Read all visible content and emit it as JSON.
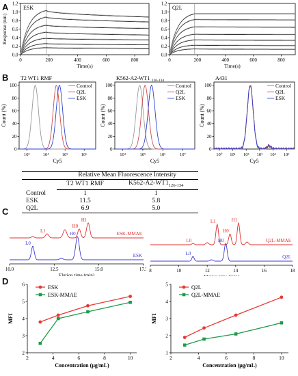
{
  "panels": {
    "A": "A",
    "B": "B",
    "C": "C",
    "D": "D"
  },
  "chart_data": [
    {
      "id": "A-ESK",
      "type": "line",
      "annotation": "ESK",
      "xlabel": "Time(s)",
      "ylabel": "Response (nm)",
      "xlim": [
        0,
        900
      ],
      "ylim": [
        0,
        1.2
      ],
      "xticks": [
        0,
        200,
        400,
        600,
        800
      ],
      "yticks": [
        0.0,
        0.2,
        0.4,
        0.6,
        0.8,
        1.0,
        1.2
      ],
      "vline": 180,
      "series": [
        {
          "plateau": 1.08,
          "end": 0.92
        },
        {
          "plateau": 0.92,
          "end": 0.8
        },
        {
          "plateau": 0.72,
          "end": 0.64
        },
        {
          "plateau": 0.55,
          "end": 0.48
        },
        {
          "plateau": 0.4,
          "end": 0.36
        },
        {
          "plateau": 0.27,
          "end": 0.24
        },
        {
          "plateau": 0.17,
          "end": 0.15
        }
      ]
    },
    {
      "id": "A-Q2L",
      "type": "line",
      "annotation": "Q2L",
      "xlabel": "Time(s)",
      "ylabel": "",
      "xlim": [
        0,
        900
      ],
      "ylim": [
        0,
        1.2
      ],
      "xticks": [
        0,
        200,
        400,
        600,
        800
      ],
      "yticks": [
        0.0,
        0.2,
        0.4,
        0.6,
        0.8,
        1.0,
        1.2
      ],
      "vline": 180,
      "series": [
        {
          "plateau": 1.0,
          "end": 1.0
        },
        {
          "plateau": 0.86,
          "end": 0.85
        },
        {
          "plateau": 0.68,
          "end": 0.67
        },
        {
          "plateau": 0.5,
          "end": 0.49
        },
        {
          "plateau": 0.36,
          "end": 0.35
        },
        {
          "plateau": 0.23,
          "end": 0.22
        },
        {
          "plateau": 0.14,
          "end": 0.13
        }
      ]
    },
    {
      "id": "B-T2",
      "type": "line",
      "title": "T2 WT1 RMF",
      "xlabel": "Cy5",
      "ylabel": "Count (%)",
      "xtick_labels": [
        "10³",
        "10⁴",
        "10⁵",
        "10⁶"
      ],
      "yticks": [
        0,
        20,
        40,
        60,
        80,
        100
      ],
      "legend": [
        "Control",
        "Q2L",
        "ESK"
      ],
      "colors": [
        "#999999",
        "#d04a4a",
        "#2b3fd0"
      ],
      "peaks_log10": [
        3.9,
        4.95,
        5.1
      ]
    },
    {
      "id": "B-K562",
      "type": "line",
      "title": "K562-A2-WT1",
      "title_sub": "126-134",
      "xlabel": "Cy5",
      "ylabel": "Count (%)",
      "xtick_labels": [
        "10⁴",
        "10⁵",
        "10⁶",
        "10⁷"
      ],
      "yticks": [
        0,
        20,
        40,
        60,
        80,
        100
      ],
      "legend": [
        "Control",
        "Q2L",
        "ESK"
      ],
      "colors": [
        "#999999",
        "#d04a4a",
        "#2b3fd0"
      ],
      "peaks_log10": [
        5.35,
        5.6,
        5.9
      ]
    },
    {
      "id": "B-A431",
      "type": "line",
      "title": "A431",
      "xlabel": "Cy5",
      "ylabel": "Count (%)",
      "xtick_labels": [
        "10⁰",
        "10¹",
        "10²",
        "10³",
        "10⁴",
        "10⁵"
      ],
      "extra_tick": "-10⁰ 10⁰",
      "yticks": [
        0,
        20,
        40,
        60,
        80,
        100
      ],
      "legend": [
        "Control",
        "Q2L",
        "ESK"
      ],
      "colors": [
        "#999999",
        "#d04a4a",
        "#2b3fd0"
      ],
      "peaks_log10": [
        2.7,
        2.7,
        2.7
      ]
    },
    {
      "id": "B-table",
      "type": "table",
      "title": "Relative Mean Fluorescence Intensity",
      "columns": [
        "T2 WT1 RMF",
        "K562-A2-WT1"
      ],
      "column_sub": "126-134",
      "rows": [
        {
          "label": "Control",
          "values": [
            "1",
            "1"
          ]
        },
        {
          "label": "ESK",
          "values": [
            "11.5",
            "5.8"
          ]
        },
        {
          "label": "Q2L",
          "values": [
            "6.9",
            "5.0"
          ]
        }
      ]
    },
    {
      "id": "C-left",
      "type": "line",
      "xlabel": "Elution time (min)",
      "xlim": [
        10,
        17.5
      ],
      "xticks": [
        10.0,
        12.5,
        15.0,
        17.5
      ],
      "traces": [
        {
          "name": "ESK-MMAE",
          "color": "#e03030",
          "peak_labels": [
            {
              "text": "L1",
              "x": 12.1
            },
            {
              "text": "H0",
              "x": 13.9
            },
            {
              "text": "H1",
              "x": 14.4
            }
          ]
        },
        {
          "name": "ESK",
          "color": "#3a3ad8",
          "peak_labels": [
            {
              "text": "L0",
              "x": 11.3
            },
            {
              "text": "H0",
              "x": 13.8
            }
          ]
        }
      ]
    },
    {
      "id": "C-right",
      "type": "line",
      "xlabel": "Elution time (min)",
      "xlim": [
        8,
        18
      ],
      "xticks": [
        8,
        10,
        12,
        14,
        16,
        18
      ],
      "traces": [
        {
          "name": "Q2L-MMAE",
          "color": "#e03030",
          "peak_labels": [
            {
              "text": "L0",
              "x": 11.0
            },
            {
              "text": "L1",
              "x": 12.7
            },
            {
              "text": "H0",
              "x": 13.6
            },
            {
              "text": "H1",
              "x": 14.2
            }
          ]
        },
        {
          "name": "Q2L",
          "color": "#3a3ad8",
          "peak_labels": [
            {
              "text": "L0",
              "x": 11.0
            },
            {
              "text": "H0",
              "x": 13.3
            }
          ]
        }
      ]
    },
    {
      "id": "D-left",
      "type": "line",
      "xlabel": "Concentration (μg/mL)",
      "ylabel": "MFI",
      "xlim": [
        2,
        10.5
      ],
      "ylim": [
        2,
        6
      ],
      "xticks": [
        2,
        4,
        6,
        8,
        10
      ],
      "yticks": [
        2,
        3,
        4,
        5,
        6
      ],
      "legend_position": "top-left",
      "series": [
        {
          "name": "ESK",
          "color": "#e53935",
          "marker": "circle",
          "x": [
            3,
            4.4,
            6.7,
            10
          ],
          "y": [
            3.8,
            4.2,
            4.75,
            5.3
          ]
        },
        {
          "name": "ESK-MMAE",
          "color": "#1e9a4a",
          "marker": "square",
          "x": [
            3,
            4.4,
            6.7,
            10
          ],
          "y": [
            2.55,
            4.0,
            4.4,
            4.95
          ]
        }
      ]
    },
    {
      "id": "D-right",
      "type": "line",
      "xlabel": "Concentration (μg/mL)",
      "ylabel": "MFI",
      "xlim": [
        2,
        10.5
      ],
      "ylim": [
        1,
        5
      ],
      "xticks": [
        2,
        4,
        6,
        8,
        10
      ],
      "yticks": [
        1,
        2,
        3,
        4,
        5
      ],
      "legend_position": "top-left",
      "series": [
        {
          "name": "Q2L",
          "color": "#e53935",
          "marker": "circle",
          "x": [
            3,
            4.4,
            6.7,
            10
          ],
          "y": [
            1.9,
            2.45,
            3.2,
            4.25
          ]
        },
        {
          "name": "Q2L-MMAE",
          "color": "#1e9a4a",
          "marker": "square",
          "x": [
            3,
            4.4,
            6.7,
            10
          ],
          "y": [
            1.45,
            1.8,
            2.1,
            2.75
          ]
        }
      ]
    }
  ]
}
